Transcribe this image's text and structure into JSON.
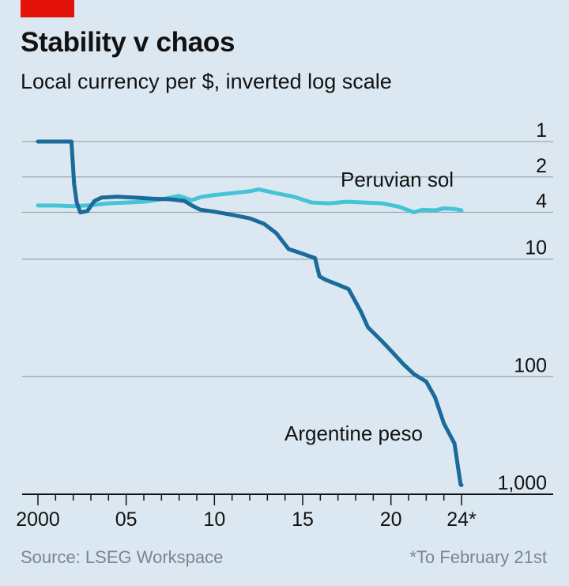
{
  "header": {
    "title": "Stability v chaos",
    "subtitle": "Local currency per $, inverted log scale"
  },
  "footer": {
    "source": "Source: LSEG Workspace",
    "footnote": "*To February 21st"
  },
  "colors": {
    "background": "#dbe8f1",
    "argentine_peso": "#1b6a9c",
    "peruvian_sol": "#45c4d6",
    "accent_red": "#e3120b",
    "gridline": "#9aa7b1"
  },
  "chart_data": {
    "type": "line",
    "title": "Stability v chaos",
    "subtitle": "Local currency per $, inverted log scale",
    "y_scale": "log",
    "y_inverted": true,
    "ylim": [
      1,
      1000
    ],
    "xlim": [
      2000,
      2024
    ],
    "y_ticks": [
      1,
      2,
      4,
      10,
      100,
      1000
    ],
    "y_tick_labels": [
      "1",
      "2",
      "4",
      "10",
      "100",
      "1,000"
    ],
    "x_ticks": [
      2000,
      2005,
      2010,
      2015,
      2020,
      2024
    ],
    "x_tick_labels": [
      "2000",
      "05",
      "10",
      "15",
      "20",
      "24*"
    ],
    "grid": true,
    "series": [
      {
        "name": "Argentine peso",
        "points": [
          [
            2000.0,
            1.0
          ],
          [
            2001.9,
            1.0
          ],
          [
            2002.05,
            2.3
          ],
          [
            2002.2,
            3.3
          ],
          [
            2002.4,
            4.0
          ],
          [
            2002.8,
            3.9
          ],
          [
            2003.2,
            3.2
          ],
          [
            2003.6,
            3.0
          ],
          [
            2004.5,
            2.95
          ],
          [
            2005.5,
            3.0
          ],
          [
            2006.5,
            3.06
          ],
          [
            2007.5,
            3.1
          ],
          [
            2008.3,
            3.2
          ],
          [
            2008.8,
            3.55
          ],
          [
            2009.2,
            3.8
          ],
          [
            2010.0,
            3.95
          ],
          [
            2011.0,
            4.2
          ],
          [
            2012.0,
            4.5
          ],
          [
            2012.8,
            5.0
          ],
          [
            2013.5,
            6.0
          ],
          [
            2014.0,
            7.5
          ],
          [
            2014.2,
            8.2
          ],
          [
            2015.0,
            9.0
          ],
          [
            2015.7,
            9.8
          ],
          [
            2015.95,
            14.0
          ],
          [
            2016.3,
            15.0
          ],
          [
            2017.0,
            16.5
          ],
          [
            2017.6,
            18.0
          ],
          [
            2018.3,
            28.0
          ],
          [
            2018.7,
            38.0
          ],
          [
            2019.5,
            50.0
          ],
          [
            2020.0,
            60.0
          ],
          [
            2020.7,
            78.0
          ],
          [
            2021.3,
            95.0
          ],
          [
            2022.0,
            110.0
          ],
          [
            2022.5,
            150.0
          ],
          [
            2023.0,
            250.0
          ],
          [
            2023.6,
            370.0
          ],
          [
            2023.95,
            830.0
          ],
          [
            2024.0,
            835.0
          ]
        ]
      },
      {
        "name": "Peruvian sol",
        "points": [
          [
            2000.0,
            3.5
          ],
          [
            2001.0,
            3.5
          ],
          [
            2002.0,
            3.55
          ],
          [
            2003.0,
            3.48
          ],
          [
            2004.0,
            3.35
          ],
          [
            2005.0,
            3.3
          ],
          [
            2006.0,
            3.25
          ],
          [
            2007.0,
            3.1
          ],
          [
            2008.0,
            2.9
          ],
          [
            2008.7,
            3.15
          ],
          [
            2009.3,
            2.95
          ],
          [
            2010.0,
            2.85
          ],
          [
            2011.0,
            2.75
          ],
          [
            2012.0,
            2.65
          ],
          [
            2012.5,
            2.55
          ],
          [
            2013.5,
            2.75
          ],
          [
            2014.5,
            2.95
          ],
          [
            2015.5,
            3.3
          ],
          [
            2016.5,
            3.35
          ],
          [
            2017.5,
            3.25
          ],
          [
            2018.5,
            3.3
          ],
          [
            2019.5,
            3.35
          ],
          [
            2020.5,
            3.6
          ],
          [
            2021.3,
            4.0
          ],
          [
            2021.8,
            3.8
          ],
          [
            2022.5,
            3.85
          ],
          [
            2023.0,
            3.7
          ],
          [
            2023.6,
            3.75
          ],
          [
            2024.0,
            3.85
          ]
        ]
      }
    ],
    "annotations": [
      {
        "series": "Peruvian sol",
        "text": "Peruvian sol"
      },
      {
        "series": "Argentine peso",
        "text": "Argentine peso"
      }
    ]
  }
}
